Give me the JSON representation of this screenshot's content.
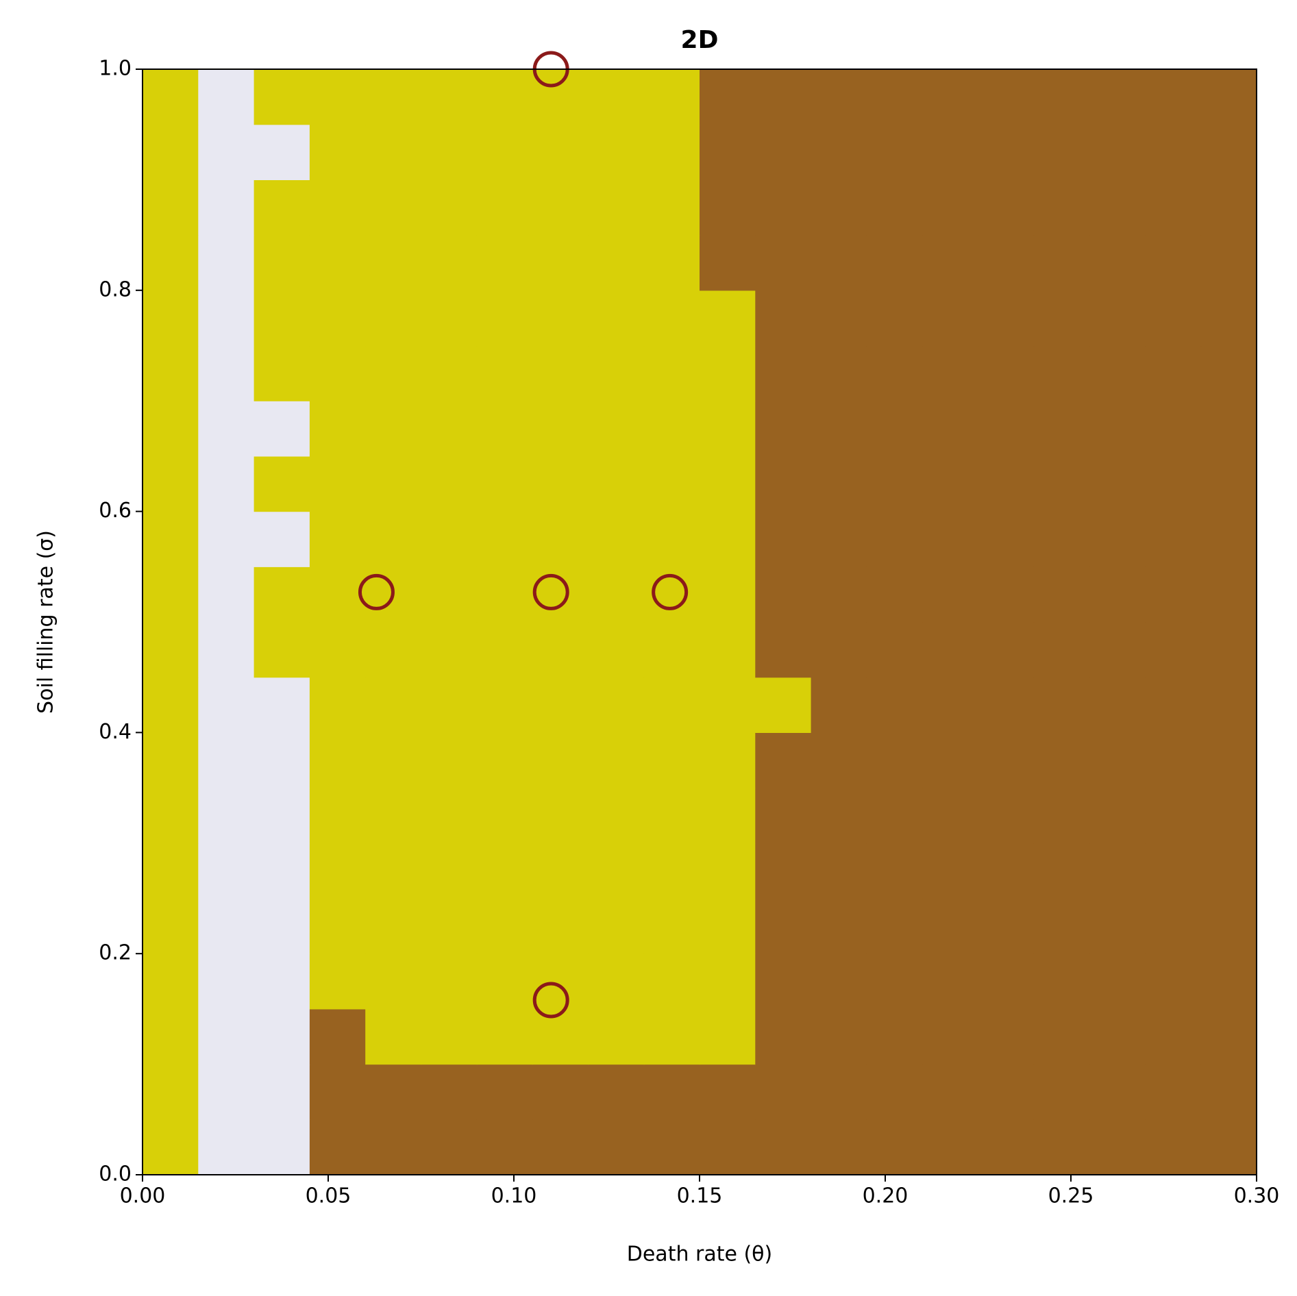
{
  "chart_data": {
    "type": "heatmap",
    "title": "2D",
    "x_label": "Death rate (θ)",
    "y_label": "Soil filling rate (σ)",
    "xlim": [
      0,
      0.3
    ],
    "ylim": [
      0,
      1
    ],
    "xticks": [
      {
        "value": 0,
        "label": "0.00"
      },
      {
        "value": 0.05,
        "label": "0.05"
      },
      {
        "value": 0.1,
        "label": "0.10"
      },
      {
        "value": 0.15,
        "label": "0.15"
      },
      {
        "value": 0.2,
        "label": "0.20"
      },
      {
        "value": 0.25,
        "label": "0.25"
      },
      {
        "value": 0.3,
        "label": "0.30"
      }
    ],
    "yticks": [
      {
        "value": 0,
        "label": "0.0"
      },
      {
        "value": 0.2,
        "label": "0.2"
      },
      {
        "value": 0.4,
        "label": "0.4"
      },
      {
        "value": 0.6,
        "label": "0.6"
      },
      {
        "value": 0.8,
        "label": "0.8"
      },
      {
        "value": 1,
        "label": "1.0"
      }
    ],
    "colors": [
      "#d8d008",
      "#e8e8f2",
      "#986220"
    ],
    "z": [
      [
        0,
        1,
        1,
        2,
        2,
        2,
        2,
        2,
        2,
        2,
        2,
        2,
        2,
        2,
        2,
        2,
        2,
        2,
        2,
        2
      ],
      [
        0,
        1,
        1,
        2,
        2,
        2,
        2,
        2,
        2,
        2,
        2,
        2,
        2,
        2,
        2,
        2,
        2,
        2,
        2,
        2
      ],
      [
        0,
        1,
        1,
        2,
        0,
        0,
        0,
        0,
        0,
        0,
        0,
        2,
        2,
        2,
        2,
        2,
        2,
        2,
        2,
        2
      ],
      [
        0,
        1,
        1,
        0,
        0,
        0,
        0,
        0,
        0,
        0,
        0,
        2,
        2,
        2,
        2,
        2,
        2,
        2,
        2,
        2
      ],
      [
        0,
        1,
        1,
        0,
        0,
        0,
        0,
        0,
        0,
        0,
        0,
        2,
        2,
        2,
        2,
        2,
        2,
        2,
        2,
        2
      ],
      [
        0,
        1,
        1,
        0,
        0,
        0,
        0,
        0,
        0,
        0,
        0,
        2,
        2,
        2,
        2,
        2,
        2,
        2,
        2,
        2
      ],
      [
        0,
        1,
        1,
        0,
        0,
        0,
        0,
        0,
        0,
        0,
        0,
        2,
        2,
        2,
        2,
        2,
        2,
        2,
        2,
        2
      ],
      [
        0,
        1,
        1,
        0,
        0,
        0,
        0,
        0,
        0,
        0,
        0,
        2,
        2,
        2,
        2,
        2,
        2,
        2,
        2,
        2
      ],
      [
        0,
        1,
        1,
        0,
        0,
        0,
        0,
        0,
        0,
        0,
        0,
        0,
        2,
        2,
        2,
        2,
        2,
        2,
        2,
        2
      ],
      [
        0,
        1,
        0,
        0,
        0,
        0,
        0,
        0,
        0,
        0,
        0,
        2,
        2,
        2,
        2,
        2,
        2,
        2,
        2,
        2
      ],
      [
        0,
        1,
        0,
        0,
        0,
        0,
        0,
        0,
        0,
        0,
        0,
        2,
        2,
        2,
        2,
        2,
        2,
        2,
        2,
        2
      ],
      [
        0,
        1,
        1,
        0,
        0,
        0,
        0,
        0,
        0,
        0,
        0,
        2,
        2,
        2,
        2,
        2,
        2,
        2,
        2,
        2
      ],
      [
        0,
        1,
        0,
        0,
        0,
        0,
        0,
        0,
        0,
        0,
        0,
        2,
        2,
        2,
        2,
        2,
        2,
        2,
        2,
        2
      ],
      [
        0,
        1,
        1,
        0,
        0,
        0,
        0,
        0,
        0,
        0,
        0,
        2,
        2,
        2,
        2,
        2,
        2,
        2,
        2,
        2
      ],
      [
        0,
        1,
        0,
        0,
        0,
        0,
        0,
        0,
        0,
        0,
        0,
        2,
        2,
        2,
        2,
        2,
        2,
        2,
        2,
        2
      ],
      [
        0,
        1,
        0,
        0,
        0,
        0,
        0,
        0,
        0,
        0,
        0,
        2,
        2,
        2,
        2,
        2,
        2,
        2,
        2,
        2
      ],
      [
        0,
        1,
        0,
        0,
        0,
        0,
        0,
        0,
        0,
        0,
        2,
        2,
        2,
        2,
        2,
        2,
        2,
        2,
        2,
        2
      ],
      [
        0,
        1,
        0,
        0,
        0,
        0,
        0,
        0,
        0,
        0,
        2,
        2,
        2,
        2,
        2,
        2,
        2,
        2,
        2,
        2
      ],
      [
        0,
        1,
        1,
        0,
        0,
        0,
        0,
        0,
        0,
        0,
        2,
        2,
        2,
        2,
        2,
        2,
        2,
        2,
        2,
        2
      ],
      [
        0,
        1,
        0,
        0,
        0,
        0,
        0,
        0,
        0,
        0,
        2,
        2,
        2,
        2,
        2,
        2,
        2,
        2,
        2,
        2
      ]
    ],
    "points": {
      "color": "#8b1a1a",
      "x": [
        0.063,
        0.11,
        0.142,
        0.11,
        0.11
      ],
      "y": [
        0.527,
        0.527,
        0.527,
        1.0,
        0.158
      ]
    }
  }
}
